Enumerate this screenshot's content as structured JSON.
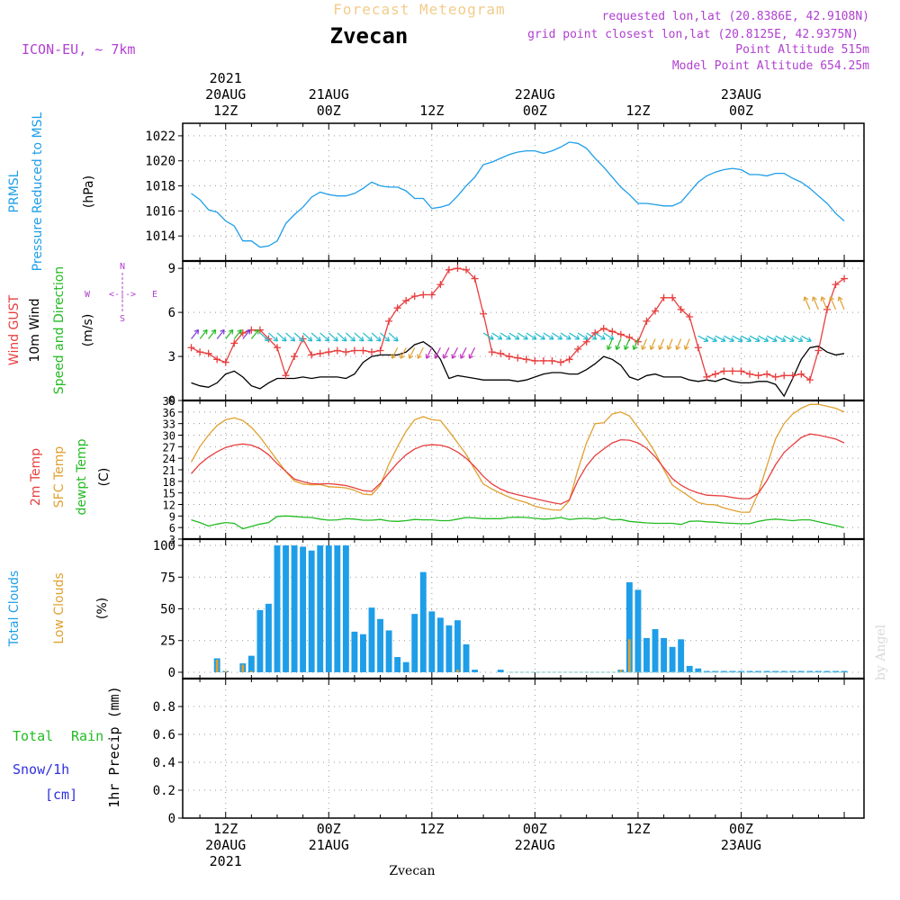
{
  "header": {
    "title": "Forecast Meteogram",
    "location": "Zvecan",
    "model": "ICON-EU, ~ 7km",
    "requested": "requested lon,lat (20.8386E, 42.9108N)",
    "gridpoint": "grid point closest lon,lat (20.8125E, 42.9375N)",
    "point_alt": "Point Altitude 515m",
    "model_alt": "Model Point Altitude 654.25m",
    "footer": "Zvecan",
    "watermark": "by Angel",
    "compass": {
      "n": "N",
      "s": "S",
      "w": "W",
      "e": "E",
      "arrow": "<-|->"
    }
  },
  "top_time_labels": [
    {
      "lines": [
        "2021",
        "20AUG",
        "12Z"
      ],
      "t": 0
    },
    {
      "lines": [
        "21AUG",
        "00Z"
      ],
      "t": 12
    },
    {
      "lines": [
        "12Z"
      ],
      "t": 24
    },
    {
      "lines": [
        "22AUG",
        "00Z"
      ],
      "t": 36
    },
    {
      "lines": [
        "12Z"
      ],
      "t": 48
    },
    {
      "lines": [
        "23AUG",
        "00Z"
      ],
      "t": 60
    }
  ],
  "bottom_time_labels": [
    {
      "lines": [
        "12Z",
        "20AUG",
        "2021"
      ],
      "t": 0
    },
    {
      "lines": [
        "00Z",
        "21AUG"
      ],
      "t": 12
    },
    {
      "lines": [
        "12Z"
      ],
      "t": 24
    },
    {
      "lines": [
        "00Z",
        "22AUG"
      ],
      "t": 36
    },
    {
      "lines": [
        "12Z"
      ],
      "t": 48
    },
    {
      "lines": [
        "00Z",
        "23AUG"
      ],
      "t": 60
    }
  ],
  "panel_labels": {
    "pressure": [
      {
        "text": "PRMSL",
        "color": "#1e9ee8"
      },
      {
        "text": "Pressure Reduced to MSL",
        "color": "#1e9ee8"
      },
      {
        "text": "(hPa)",
        "color": "#000000"
      }
    ],
    "wind": [
      {
        "text": "Wind GUST",
        "color": "#e83e3e"
      },
      {
        "text": "10m Wind",
        "color": "#000000"
      },
      {
        "text": "Speed and Direction",
        "color": "#22bb22"
      },
      {
        "text": "(m/s)",
        "color": "#000000"
      }
    ],
    "temp": [
      {
        "text": "2m Temp",
        "color": "#e83e3e"
      },
      {
        "text": "SFC Temp",
        "color": "#e0a030"
      },
      {
        "text": "dewpt Temp",
        "color": "#22bb22"
      },
      {
        "text": "(C)",
        "color": "#000000"
      }
    ],
    "clouds": [
      {
        "text": "Total Clouds",
        "color": "#1e9ee8"
      },
      {
        "text": "Low Clouds",
        "color": "#e0a030"
      },
      {
        "text": "(%)",
        "color": "#000000"
      }
    ],
    "precip": {
      "total": "Total",
      "rain": "Rain",
      "snow": "Snow/1h",
      "cm": "[cm]",
      "unit": "1hr Precip (mm)"
    }
  },
  "chart_data": [
    {
      "type": "line",
      "name": "pressure",
      "ylim": [
        1012,
        1023
      ],
      "yticks": [
        1014,
        1016,
        1018,
        1020,
        1022
      ],
      "x_hours": [
        -4,
        -3,
        -2,
        -1,
        0,
        1,
        2,
        3,
        4,
        5,
        6,
        7,
        8,
        9,
        10,
        11,
        12,
        13,
        14,
        15,
        16,
        17,
        18,
        19,
        20,
        21,
        22,
        23,
        24,
        25,
        26,
        27,
        28,
        29,
        30,
        31,
        32,
        33,
        34,
        35,
        36,
        37,
        38,
        39,
        40,
        41,
        42,
        43,
        44,
        45,
        46,
        47,
        48,
        49,
        50,
        51,
        52,
        53,
        54,
        55,
        56,
        57,
        58,
        59,
        60,
        61,
        62,
        63,
        64,
        65,
        66,
        67,
        68,
        69,
        70,
        71,
        72
      ],
      "values": [
        1017.4,
        1016.9,
        1016.1,
        1015.9,
        1015.2,
        1014.8,
        1013.6,
        1013.6,
        1013.1,
        1013.2,
        1013.6,
        1015.0,
        1015.7,
        1016.3,
        1017.1,
        1017.5,
        1017.3,
        1017.2,
        1017.2,
        1017.4,
        1017.8,
        1018.3,
        1018.0,
        1017.9,
        1017.9,
        1017.6,
        1017.0,
        1017.0,
        1016.2,
        1016.3,
        1016.5,
        1017.2,
        1018.0,
        1018.7,
        1019.7,
        1019.9,
        1020.2,
        1020.5,
        1020.7,
        1020.8,
        1020.8,
        1020.6,
        1020.8,
        1021.1,
        1021.5,
        1021.4,
        1021.0,
        1020.2,
        1019.5,
        1018.7,
        1017.9,
        1017.3,
        1016.6,
        1016.6,
        1016.5,
        1016.4,
        1016.4,
        1016.7,
        1017.5,
        1018.3,
        1018.8,
        1019.1,
        1019.3,
        1019.4,
        1019.3,
        1018.9,
        1018.9,
        1018.8,
        1019.0,
        1019.0,
        1018.6,
        1018.3,
        1017.8,
        1017.2,
        1016.6,
        1015.8,
        1015.2
      ]
    },
    {
      "type": "line",
      "name": "wind",
      "ylim": [
        0,
        9.5
      ],
      "yticks": [
        0,
        3,
        6,
        9
      ],
      "x_hours": [
        -4,
        -3,
        -2,
        -1,
        0,
        1,
        2,
        3,
        4,
        5,
        6,
        7,
        8,
        9,
        10,
        11,
        12,
        13,
        14,
        15,
        16,
        17,
        18,
        19,
        20,
        21,
        22,
        23,
        24,
        25,
        26,
        27,
        28,
        29,
        30,
        31,
        32,
        33,
        34,
        35,
        36,
        37,
        38,
        39,
        40,
        41,
        42,
        43,
        44,
        45,
        46,
        47,
        48,
        49,
        50,
        51,
        52,
        53,
        54,
        55,
        56,
        57,
        58,
        59,
        60,
        61,
        62,
        63,
        64,
        65,
        66,
        67,
        68,
        69,
        70,
        71,
        72
      ],
      "gust": [
        3.6,
        3.3,
        3.2,
        2.8,
        2.6,
        3.9,
        4.6,
        4.8,
        4.8,
        4.2,
        3.6,
        1.7,
        3.0,
        4.2,
        3.1,
        3.2,
        3.3,
        3.4,
        3.3,
        3.4,
        3.4,
        3.3,
        3.4,
        5.4,
        6.3,
        6.8,
        7.1,
        7.2,
        7.2,
        7.9,
        8.9,
        9.0,
        8.9,
        8.3,
        5.9,
        3.3,
        3.2,
        3.0,
        2.9,
        2.8,
        2.7,
        2.7,
        2.7,
        2.6,
        2.8,
        3.5,
        4.0,
        4.6,
        4.9,
        4.7,
        4.5,
        4.3,
        4.0,
        5.4,
        6.1,
        7.0,
        7.0,
        6.2,
        5.7,
        3.6,
        1.6,
        1.8,
        2.0,
        2.0,
        2.0,
        1.8,
        1.7,
        1.8,
        1.6,
        1.7,
        1.7,
        1.8,
        1.4,
        3.4,
        6.2,
        7.9,
        8.3
      ],
      "speed": [
        1.2,
        1.0,
        0.9,
        1.2,
        1.8,
        2.0,
        1.6,
        1.0,
        0.8,
        1.2,
        1.5,
        1.5,
        1.5,
        1.6,
        1.5,
        1.6,
        1.6,
        1.6,
        1.5,
        1.8,
        2.6,
        3.0,
        3.1,
        3.1,
        3.1,
        3.3,
        3.8,
        4.0,
        3.6,
        2.8,
        1.5,
        1.7,
        1.6,
        1.5,
        1.4,
        1.4,
        1.4,
        1.4,
        1.3,
        1.4,
        1.6,
        1.8,
        1.9,
        1.9,
        1.8,
        1.8,
        2.1,
        2.5,
        3.0,
        2.8,
        2.4,
        1.6,
        1.4,
        1.7,
        1.8,
        1.6,
        1.6,
        1.6,
        1.4,
        1.3,
        1.4,
        1.3,
        1.5,
        1.3,
        1.2,
        1.2,
        1.3,
        1.3,
        1.1,
        0.3,
        1.5,
        2.8,
        3.6,
        3.7,
        3.3,
        3.1,
        3.2
      ]
    },
    {
      "type": "line",
      "name": "temperature",
      "ylim": [
        3,
        39
      ],
      "yticks": [
        3,
        6,
        9,
        12,
        15,
        18,
        21,
        24,
        27,
        30,
        33,
        36,
        39
      ],
      "x_hours": [
        -4,
        -3,
        -2,
        -1,
        0,
        1,
        2,
        3,
        4,
        5,
        6,
        7,
        8,
        9,
        10,
        11,
        12,
        13,
        14,
        15,
        16,
        17,
        18,
        19,
        20,
        21,
        22,
        23,
        24,
        25,
        26,
        27,
        28,
        29,
        30,
        31,
        32,
        33,
        34,
        35,
        36,
        37,
        38,
        39,
        40,
        41,
        42,
        43,
        44,
        45,
        46,
        47,
        48,
        49,
        50,
        51,
        52,
        53,
        54,
        55,
        56,
        57,
        58,
        59,
        60,
        61,
        62,
        63,
        64,
        65,
        66,
        67,
        68,
        69,
        70,
        71,
        72
      ],
      "t2m": [
        20.0,
        22.5,
        24.3,
        25.7,
        26.8,
        27.4,
        27.7,
        27.4,
        26.5,
        24.9,
        22.6,
        20.6,
        18.6,
        17.9,
        17.4,
        17.3,
        17.4,
        17.2,
        16.9,
        16.3,
        15.6,
        15.4,
        17.5,
        20.2,
        22.8,
        24.9,
        26.4,
        27.3,
        27.5,
        27.4,
        26.8,
        25.6,
        24.0,
        21.8,
        19.3,
        17.3,
        16.0,
        15.1,
        14.5,
        14.0,
        13.5,
        13.0,
        12.5,
        12.1,
        13.2,
        18.2,
        22.0,
        24.7,
        26.4,
        28.0,
        28.8,
        28.7,
        28.0,
        26.6,
        24.4,
        21.5,
        18.7,
        17.0,
        15.8,
        15.0,
        14.4,
        14.3,
        14.2,
        13.8,
        13.5,
        13.5,
        14.9,
        18.2,
        22.3,
        25.5,
        27.5,
        29.4,
        30.3,
        30.0,
        29.5,
        29.0,
        28.0
      ],
      "sfc": [
        23.0,
        27.0,
        30.0,
        32.5,
        34.0,
        34.5,
        33.8,
        32.0,
        29.5,
        26.5,
        23.5,
        20.5,
        18.1,
        17.3,
        17.1,
        17.2,
        16.6,
        16.5,
        16.3,
        15.7,
        14.7,
        14.5,
        17.0,
        22.5,
        27.0,
        31.0,
        34.0,
        34.8,
        34.0,
        33.8,
        31.0,
        28.0,
        25.0,
        21.0,
        17.3,
        16.0,
        14.9,
        13.9,
        13.1,
        12.5,
        11.5,
        11.0,
        10.6,
        10.5,
        13.0,
        21.0,
        28.0,
        33.0,
        33.2,
        35.5,
        36.0,
        35.0,
        32.0,
        29.0,
        25.5,
        21.0,
        17.0,
        15.5,
        14.0,
        12.5,
        12.0,
        11.9,
        11.1,
        10.5,
        10.0,
        10.0,
        15.0,
        22.0,
        29.0,
        33.0,
        35.5,
        37.0,
        38.0,
        38.0,
        37.5,
        37.0,
        36.0
      ],
      "dewpt": [
        8.0,
        7.3,
        6.4,
        6.9,
        7.3,
        7.1,
        5.7,
        6.3,
        6.9,
        7.3,
        8.9,
        9.0,
        8.9,
        8.7,
        8.6,
        8.2,
        7.9,
        8.0,
        8.3,
        8.2,
        7.9,
        7.9,
        8.1,
        7.7,
        7.6,
        7.8,
        8.1,
        8.0,
        8.0,
        7.8,
        7.8,
        8.2,
        8.6,
        8.5,
        8.3,
        8.3,
        8.3,
        8.6,
        8.7,
        8.6,
        8.4,
        8.2,
        8.3,
        8.6,
        8.1,
        8.3,
        8.4,
        8.2,
        8.6,
        8.0,
        8.1,
        7.6,
        7.4,
        7.2,
        7.1,
        7.1,
        7.1,
        6.8,
        7.6,
        7.7,
        7.5,
        7.4,
        7.2,
        7.1,
        7.0,
        7.0,
        7.6,
        8.0,
        8.2,
        8.0,
        7.8,
        8.0,
        8.0,
        7.5,
        7.0,
        6.5,
        6.0
      ]
    },
    {
      "type": "bar",
      "name": "clouds",
      "ylim": [
        -5,
        105
      ],
      "yticks": [
        0,
        25,
        50,
        75,
        100
      ],
      "x_hours": [
        -4,
        -3,
        -2,
        -1,
        0,
        1,
        2,
        3,
        4,
        5,
        6,
        7,
        8,
        9,
        10,
        11,
        12,
        13,
        14,
        15,
        16,
        17,
        18,
        19,
        20,
        21,
        22,
        23,
        24,
        25,
        26,
        27,
        28,
        29,
        30,
        31,
        32,
        33,
        34,
        35,
        36,
        37,
        38,
        39,
        40,
        41,
        42,
        43,
        44,
        45,
        46,
        47,
        48,
        49,
        50,
        51,
        52,
        53,
        54,
        55,
        56,
        57,
        58,
        59,
        60,
        61,
        62,
        63,
        64,
        65,
        66,
        67,
        68,
        69,
        70,
        71,
        72
      ],
      "total": [
        0,
        0,
        0,
        11,
        1,
        0,
        7,
        13,
        49,
        54,
        100,
        100,
        100,
        99,
        96,
        100,
        100,
        100,
        100,
        32,
        30,
        51,
        42,
        33,
        12,
        8,
        46,
        79,
        48,
        43,
        37,
        41,
        22,
        2,
        0,
        0,
        2,
        0,
        0,
        0,
        0,
        0,
        0,
        0,
        0,
        0,
        0,
        0,
        0,
        0,
        2,
        71,
        65,
        27,
        34,
        27,
        20,
        26,
        5,
        3,
        1,
        1,
        1,
        1,
        1,
        1,
        1,
        1,
        1,
        1,
        1,
        1,
        1,
        1,
        1,
        1,
        1
      ],
      "low": [
        0,
        0,
        0,
        10,
        1,
        0,
        6,
        1,
        0,
        0,
        0,
        0,
        0,
        0,
        0,
        0,
        0,
        0,
        0,
        0,
        0,
        0,
        0,
        0,
        0,
        0,
        0,
        0,
        0,
        0,
        0,
        2,
        0,
        0,
        0,
        0,
        0,
        0,
        0,
        0,
        0,
        0,
        0,
        0,
        0,
        0,
        0,
        0,
        0,
        0,
        2,
        26,
        0,
        0,
        0,
        0,
        0,
        0,
        0,
        0,
        0,
        0,
        0,
        0,
        0,
        0,
        0,
        0,
        0,
        0,
        0,
        0,
        0,
        0,
        0,
        0,
        0
      ]
    },
    {
      "type": "bar",
      "name": "precip",
      "ylim": [
        0,
        1.0
      ],
      "yticks": [
        0,
        0.2,
        0.4,
        0.6,
        0.8
      ],
      "x_hours": [],
      "values": []
    }
  ],
  "colors": {
    "pressure": "#1e9ee8",
    "gust": "#e83e3e",
    "speed": "#000000",
    "t2m": "#e83e3e",
    "sfc": "#e0a030",
    "dewpt": "#22bb22",
    "total_cloud": "#1e9ee8",
    "low_cloud": "#e0a030",
    "title": "#f2cc8a",
    "info": "#b040d0",
    "rain": "#22bb22",
    "snow": "#3030e0"
  }
}
